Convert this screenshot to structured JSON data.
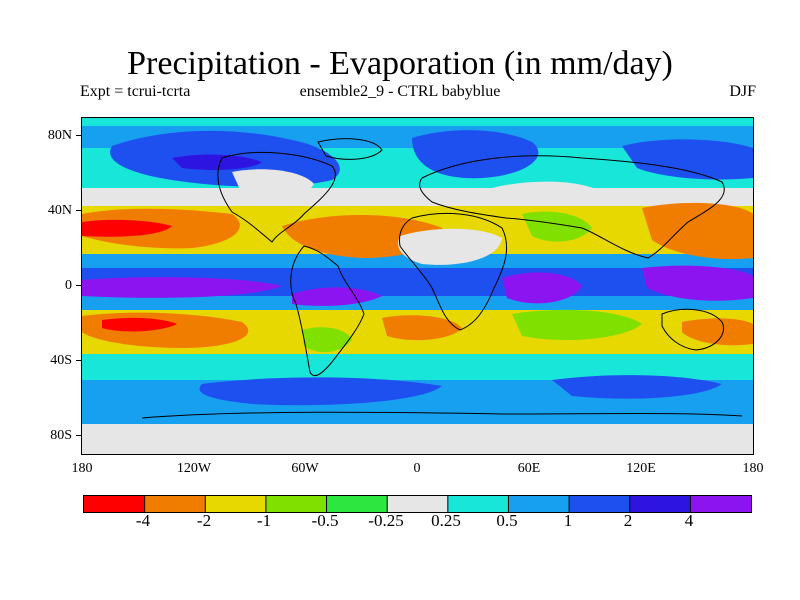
{
  "title": "Precipitation - Evaporation (in mm/day)",
  "subtitle_left": "Expt = tcrui-tcrta",
  "subtitle_center": "ensemble2_9 - CTRL babyblue",
  "subtitle_right": "DJF",
  "y_labels": [
    "80N",
    "40N",
    "0",
    "40S",
    "80S"
  ],
  "x_labels": [
    "180",
    "120W",
    "60W",
    "0",
    "60E",
    "120E",
    "180"
  ],
  "colorbar": {
    "labels": [
      "-4",
      "-2",
      "-1",
      "-0.5",
      "-0.25",
      "0.25",
      "0.5",
      "1",
      "2",
      "4"
    ],
    "colors": [
      "#ff0000",
      "#f07c00",
      "#e6d800",
      "#80e000",
      "#2ee640",
      "#e6e6e6",
      "#18e6d8",
      "#18a0f0",
      "#1e50f0",
      "#2e14e0",
      "#8c14f0"
    ]
  },
  "map_palette": {
    "land_lines": "#000000",
    "background": "#e6e6e6"
  }
}
